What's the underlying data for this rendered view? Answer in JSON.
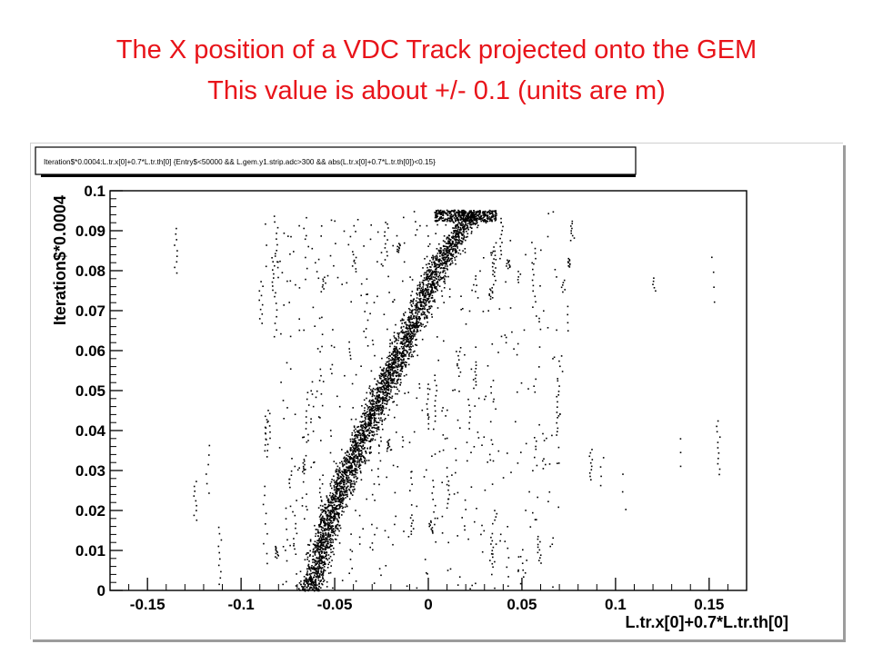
{
  "slide": {
    "title_line_1": "The X position of a VDC Track projected onto the GEM",
    "title_line_2": "This value is about +/- 0.1 (units are m)",
    "title_color": "#e8141a"
  },
  "chart_data": {
    "type": "scatter",
    "title": "Iteration$*0.0004:L.tr.x[0]+0.7*L.tr.th[0] {Entry$<50000 && L.gem.y1.strip.adc>300 && abs(L.tr.x[0]+0.7*L.tr.th[0])<0.15}",
    "xlabel": "L.tr.x[0]+0.7*L.tr.th[0]",
    "ylabel": "Iteration$*0.0004",
    "xlim": [
      -0.17,
      0.17
    ],
    "ylim": [
      0,
      0.1
    ],
    "xticks": [
      "-0.15",
      "-0.1",
      "-0.05",
      "0",
      "0.05",
      "0.1",
      "0.15"
    ],
    "yticks": [
      "0",
      "0.01",
      "0.02",
      "0.03",
      "0.04",
      "0.05",
      "0.06",
      "0.07",
      "0.08",
      "0.09",
      "0.1"
    ],
    "grid": false,
    "marker_color": "#000000",
    "band": {
      "description_points": [
        {
          "y": 0.001,
          "x": -0.063
        },
        {
          "y": 0.02,
          "x": -0.052
        },
        {
          "y": 0.04,
          "x": -0.034
        },
        {
          "y": 0.06,
          "x": -0.015
        },
        {
          "y": 0.08,
          "x": 0.004
        },
        {
          "y": 0.095,
          "x": 0.023
        }
      ]
    }
  }
}
